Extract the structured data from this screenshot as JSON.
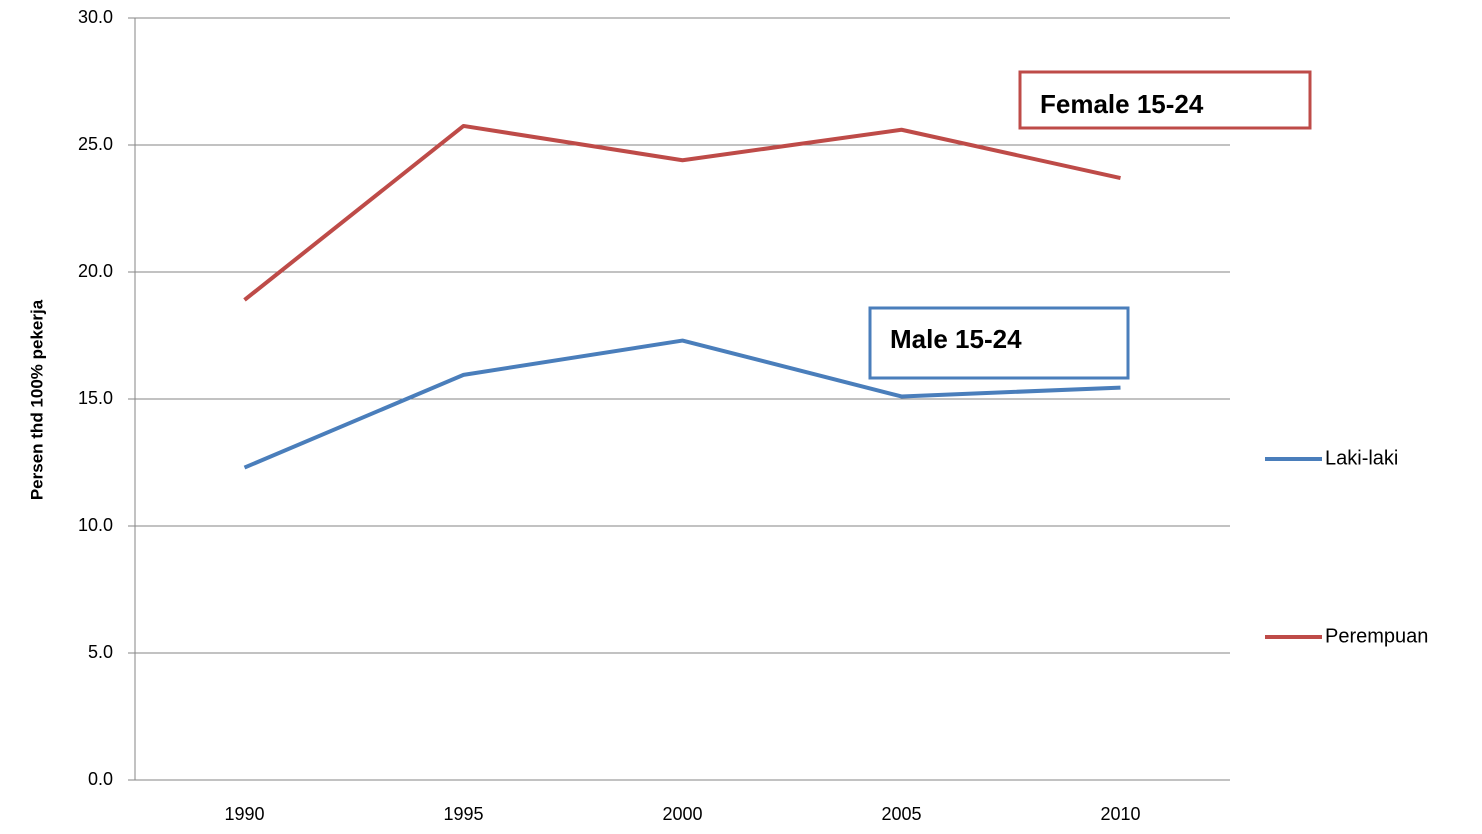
{
  "chart_data": {
    "type": "line",
    "y_label": "Persen thd 100% pekerja",
    "categories": [
      "1990",
      "1995",
      "2000",
      "2005",
      "2010"
    ],
    "series": [
      {
        "name": "Laki-laki",
        "color": "#4a7ebb",
        "values": [
          12.3,
          15.95,
          17.3,
          15.1,
          15.45
        ]
      },
      {
        "name": "Perempuan",
        "color": "#be4b48",
        "values": [
          18.9,
          25.75,
          24.4,
          25.6,
          23.7
        ]
      }
    ],
    "ylim": [
      0,
      30
    ],
    "yticks": [
      {
        "value": 0,
        "label": "0.0"
      },
      {
        "value": 5,
        "label": "5.0"
      },
      {
        "value": 10,
        "label": "10.0"
      },
      {
        "value": 15,
        "label": "15.0"
      },
      {
        "value": 20,
        "label": "20.0"
      },
      {
        "value": 25,
        "label": "25.0"
      },
      {
        "value": 30,
        "label": "30.0"
      }
    ],
    "grid": true,
    "legend": "right",
    "annotations": [
      "Female 15-24",
      "Male 15-24"
    ]
  }
}
